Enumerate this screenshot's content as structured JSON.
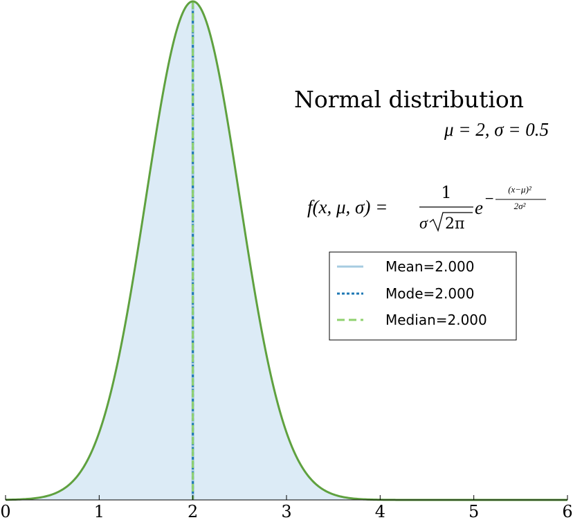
{
  "chart_data": {
    "type": "area",
    "distribution": "normal",
    "title": "Normal distribution",
    "params_label": "μ = 2, σ = 0.5",
    "formula": {
      "lhs": "f(x, μ, σ) = ",
      "numerator": "1",
      "denominator_sigma": "σ",
      "denominator_root": "2π",
      "base": "e",
      "exp_minus": "−",
      "exp_numerator": "(x−μ)²",
      "exp_denominator": "2σ²"
    },
    "parameters": {
      "mu": 2,
      "sigma": 0.5
    },
    "xlim": [
      0,
      6
    ],
    "ylim": [
      0,
      0.8
    ],
    "x_ticks": [
      "0",
      "1",
      "2",
      "3",
      "4",
      "5",
      "6"
    ],
    "grid": false,
    "legend_position": "right",
    "series": [
      {
        "name": "Mean=2.000",
        "x": 2.0
      },
      {
        "name": "Mode=2.000",
        "x": 2.0
      },
      {
        "name": "Median=2.000",
        "x": 2.0
      }
    ],
    "colors": {
      "curve": "#5fa13f",
      "fill": "#dcebf6",
      "mean": "#a6cbe0",
      "mode": "#1f78b4",
      "median": "#8fd16e",
      "axis": "#000000"
    }
  }
}
